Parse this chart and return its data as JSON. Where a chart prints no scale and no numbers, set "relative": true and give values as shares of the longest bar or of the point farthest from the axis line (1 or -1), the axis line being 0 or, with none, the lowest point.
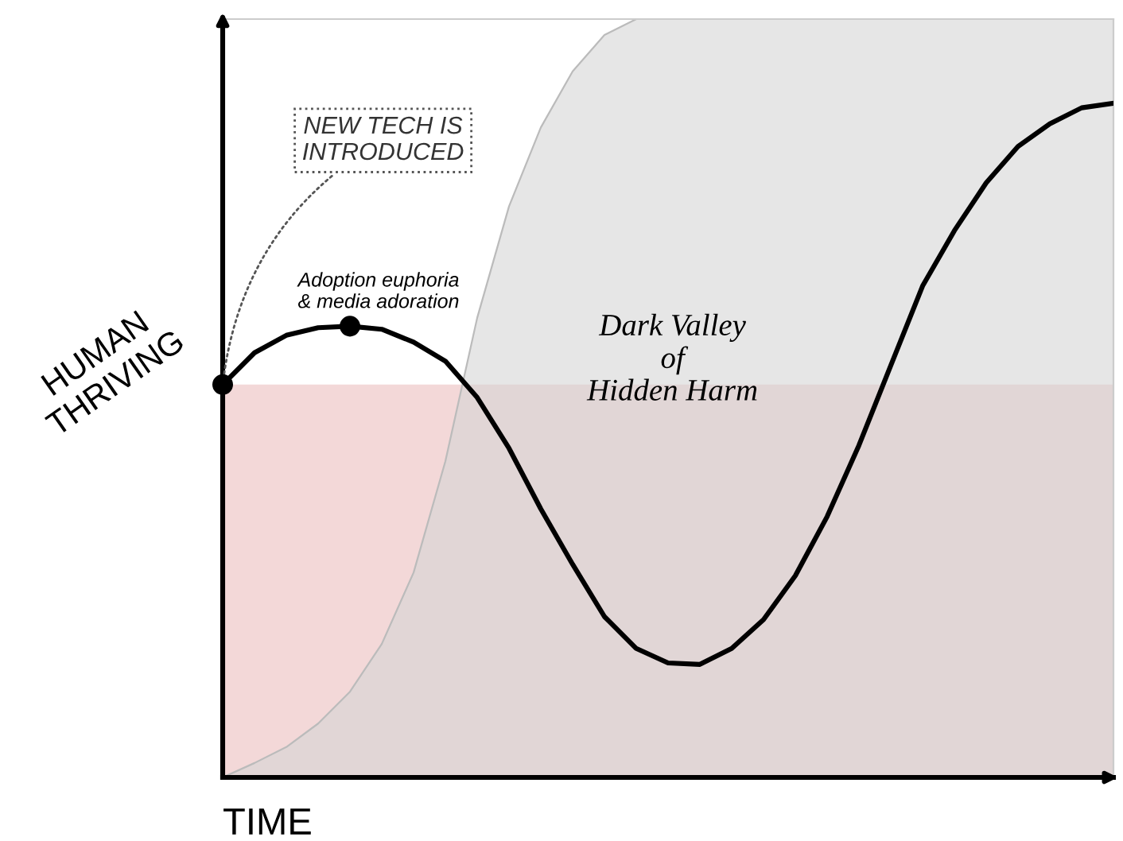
{
  "chart_data": {
    "type": "line",
    "relative": true,
    "xlabel": "TIME",
    "ylabel": "HUMAN\nTHRIVING",
    "categories": [
      null,
      null,
      null,
      null,
      null,
      null,
      null,
      null,
      null,
      null,
      null,
      null,
      null,
      null,
      null,
      null,
      null,
      null,
      null,
      null,
      null,
      null,
      null,
      null,
      null,
      null,
      null,
      null,
      null
    ],
    "series": [
      {
        "type": "area",
        "color": "#d6d6d6",
        "values": [
          0,
          0.019,
          0.04,
          0.071,
          0.113,
          0.176,
          0.27,
          0.417,
          0.606,
          0.753,
          0.857,
          0.931,
          0.979,
          1.0,
          1.0,
          1.0,
          1.0,
          1.0,
          1.0,
          1.0,
          1.0,
          1.0,
          1.0,
          1.0,
          1.0,
          1.0,
          1.0,
          1.0,
          1.0
        ]
      },
      {
        "color": "#000000",
        "values": [
          0.518,
          0.56,
          0.583,
          0.593,
          0.595,
          0.591,
          0.574,
          0.549,
          0.501,
          0.434,
          0.354,
          0.281,
          0.212,
          0.17,
          0.151,
          0.149,
          0.17,
          0.208,
          0.266,
          0.344,
          0.438,
          0.543,
          0.648,
          0.721,
          0.784,
          0.832,
          0.862,
          0.883,
          0.889
        ]
      }
    ],
    "bands": [
      {
        "axis": "y",
        "from": 0,
        "to": 0.518,
        "color": "#f2d4d4"
      }
    ],
    "annotations": [
      "NEW TECH IS\nINTRODUCED",
      "Adoption euphoria\n& media adoration",
      "Dark Valley\nof\nHidden Harm"
    ],
    "grid": false
  }
}
